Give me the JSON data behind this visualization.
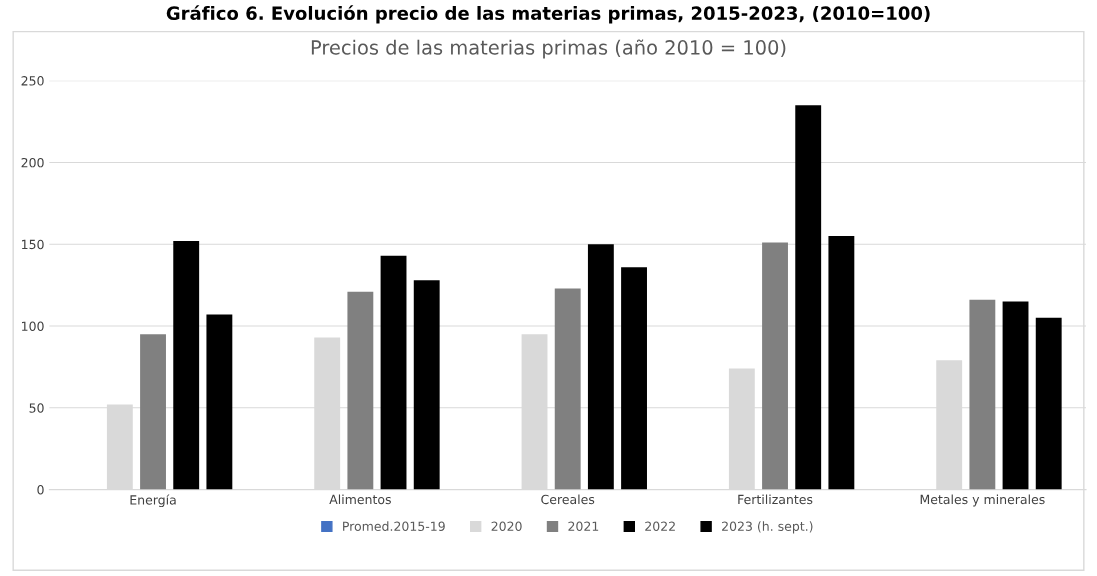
{
  "chart_data": {
    "type": "bar",
    "title": "Gráfico 6. Evolución precio de las materias primas, 2015-2023, (2010=100)",
    "subtitle": "Precios de las materias primas (año 2010 = 100)",
    "categories": [
      "Energía",
      "Alimentos",
      "Cereales",
      "Fertilizantes",
      "Metales y minerales"
    ],
    "series": [
      {
        "name": "Promed.2015-19",
        "color": "#4472c4",
        "values": [
          null,
          null,
          null,
          null,
          null
        ]
      },
      {
        "name": "2020",
        "color": "#d9d9d9",
        "values": [
          52,
          93,
          95,
          74,
          79
        ]
      },
      {
        "name": "2021",
        "color": "#808080",
        "values": [
          95,
          121,
          123,
          151,
          116
        ]
      },
      {
        "name": "2022",
        "color": "#000000",
        "values": [
          152,
          143,
          150,
          235,
          115
        ]
      },
      {
        "name": "2023 (h. sept.)",
        "color": "#000000",
        "values": [
          107,
          128,
          136,
          155,
          105
        ]
      }
    ],
    "ylim": [
      0,
      250
    ],
    "yticks": [
      0,
      50,
      100,
      150,
      200,
      250
    ],
    "grid": "y",
    "legend": "bottom"
  }
}
